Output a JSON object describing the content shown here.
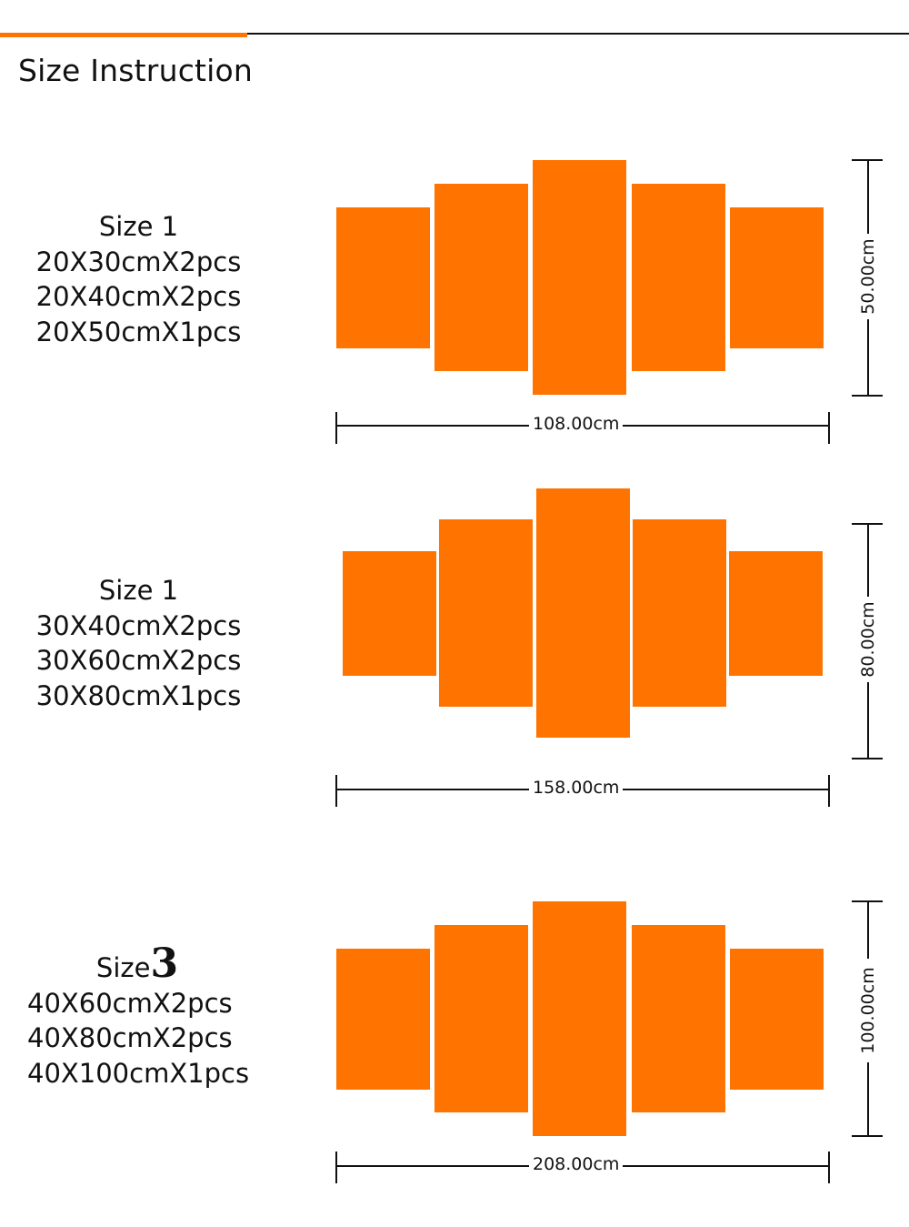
{
  "header": {
    "title": "Size Instruction"
  },
  "colors": {
    "accent": "#ff7300",
    "text": "#111111"
  },
  "sizes": [
    {
      "label_prefix": "Size ",
      "label_number": "1",
      "lines": [
        "20X30cmX2pcs",
        "20X40cmX2pcs",
        "20X50cmX1pcs"
      ],
      "width_label": "108.00cm",
      "height_label": "50.00cm"
    },
    {
      "label_prefix": "Size ",
      "label_number": "1",
      "lines": [
        "30X40cmX2pcs",
        "30X60cmX2pcs",
        "30X80cmX1pcs"
      ],
      "width_label": "158.00cm",
      "height_label": "80.00cm"
    },
    {
      "label_prefix": "Size",
      "label_number": "3",
      "lines": [
        "40X60cmX2pcs",
        "40X80cmX2pcs",
        "40X100cmX1pcs"
      ],
      "width_label": "208.00cm",
      "height_label": "100.00cm"
    }
  ]
}
